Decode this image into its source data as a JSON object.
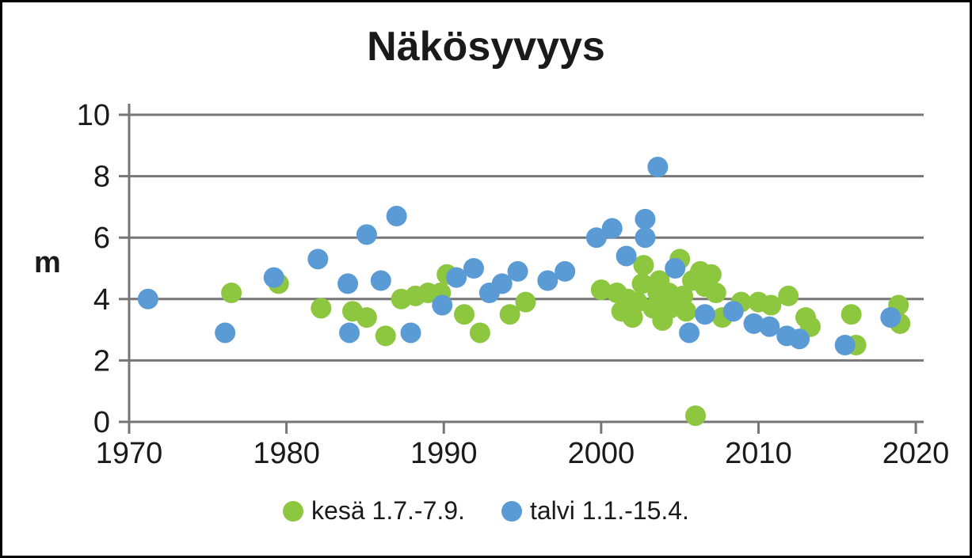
{
  "figure": {
    "background": "#ffffff",
    "frame_color": "#000000"
  },
  "chart_data": {
    "type": "scatter",
    "title": "Näkösyvyys",
    "xlabel": "",
    "ylabel": "m",
    "xlim": [
      1970,
      2020.5
    ],
    "ylim": [
      0,
      10
    ],
    "xticks": [
      1970,
      1980,
      1990,
      2000,
      2010,
      2020
    ],
    "yticks": [
      0,
      2,
      4,
      6,
      8,
      10
    ],
    "grid": "horizontal",
    "grid_color": "#767676",
    "tick_label_color": "#1a1a1a",
    "legend_position": "bottom",
    "marker": "circle",
    "series": [
      {
        "id": "kesa",
        "name": "kesä 1.7.-7.9.",
        "color": "#8dc63f",
        "points": [
          [
            1976.5,
            4.2
          ],
          [
            1979.5,
            4.5
          ],
          [
            1982.2,
            3.7
          ],
          [
            1984.2,
            3.6
          ],
          [
            1985.1,
            3.4
          ],
          [
            1986.3,
            2.8
          ],
          [
            1987.3,
            4.0
          ],
          [
            1988.2,
            4.1
          ],
          [
            1989.0,
            4.2
          ],
          [
            1989.8,
            4.2
          ],
          [
            1990.2,
            4.8
          ],
          [
            1991.3,
            3.5
          ],
          [
            1992.3,
            2.9
          ],
          [
            1994.2,
            3.5
          ],
          [
            1995.2,
            3.9
          ],
          [
            2000.0,
            4.3
          ],
          [
            2001.0,
            4.2
          ],
          [
            2001.3,
            3.6
          ],
          [
            2001.7,
            4.0
          ],
          [
            2002.0,
            3.4
          ],
          [
            2002.3,
            3.9
          ],
          [
            2002.6,
            4.5
          ],
          [
            2002.7,
            5.1
          ],
          [
            2003.3,
            3.7
          ],
          [
            2003.6,
            4.2
          ],
          [
            2003.7,
            4.6
          ],
          [
            2003.9,
            3.3
          ],
          [
            2004.3,
            4.2
          ],
          [
            2004.4,
            3.7
          ],
          [
            2005.0,
            5.3
          ],
          [
            2005.2,
            4.1
          ],
          [
            2005.4,
            3.6
          ],
          [
            2005.8,
            4.6
          ],
          [
            2006.0,
            0.2
          ],
          [
            2006.3,
            4.9
          ],
          [
            2006.6,
            4.4
          ],
          [
            2007.0,
            4.8
          ],
          [
            2007.3,
            4.2
          ],
          [
            2007.7,
            3.4
          ],
          [
            2008.9,
            3.9
          ],
          [
            2010.0,
            3.9
          ],
          [
            2010.8,
            3.8
          ],
          [
            2011.9,
            4.1
          ],
          [
            2013.0,
            3.4
          ],
          [
            2013.3,
            3.1
          ],
          [
            2015.9,
            3.5
          ],
          [
            2016.2,
            2.5
          ],
          [
            2018.9,
            3.8
          ],
          [
            2019.0,
            3.2
          ]
        ]
      },
      {
        "id": "talvi",
        "name": "talvi 1.1.-15.4.",
        "color": "#5b9bd5",
        "points": [
          [
            1971.2,
            4.0
          ],
          [
            1976.1,
            2.9
          ],
          [
            1979.2,
            4.7
          ],
          [
            1982.0,
            5.3
          ],
          [
            1983.9,
            4.5
          ],
          [
            1984.0,
            2.9
          ],
          [
            1985.1,
            6.1
          ],
          [
            1986.0,
            4.6
          ],
          [
            1987.0,
            6.7
          ],
          [
            1987.9,
            2.9
          ],
          [
            1989.9,
            3.8
          ],
          [
            1990.8,
            4.7
          ],
          [
            1991.9,
            5.0
          ],
          [
            1992.9,
            4.2
          ],
          [
            1993.7,
            4.5
          ],
          [
            1994.7,
            4.9
          ],
          [
            1996.6,
            4.6
          ],
          [
            1997.7,
            4.9
          ],
          [
            1999.7,
            6.0
          ],
          [
            2000.7,
            6.3
          ],
          [
            2001.6,
            5.4
          ],
          [
            2002.8,
            6.6
          ],
          [
            2002.8,
            6.0
          ],
          [
            2003.6,
            8.3
          ],
          [
            2004.7,
            5.0
          ],
          [
            2005.6,
            2.9
          ],
          [
            2006.6,
            3.5
          ],
          [
            2008.4,
            3.6
          ],
          [
            2009.7,
            3.2
          ],
          [
            2010.7,
            3.1
          ],
          [
            2011.8,
            2.8
          ],
          [
            2012.6,
            2.7
          ],
          [
            2015.5,
            2.5
          ],
          [
            2018.4,
            3.4
          ]
        ]
      }
    ]
  }
}
